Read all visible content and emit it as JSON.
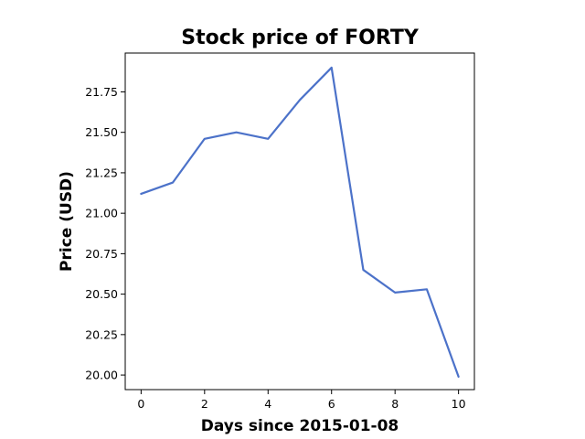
{
  "chart_data": {
    "type": "line",
    "title": "Stock price of FORTY",
    "xlabel": "Days since 2015-01-08",
    "ylabel": "Price (USD)",
    "x": [
      0,
      1,
      2,
      3,
      4,
      5,
      6,
      7,
      8,
      9,
      10
    ],
    "series": [
      {
        "color": "#4c72c9",
        "values": [
          21.12,
          21.19,
          21.46,
          21.5,
          21.46,
          21.7,
          21.9,
          20.65,
          20.51,
          20.53,
          19.99
        ]
      }
    ],
    "xlim": [
      -0.5,
      10.5
    ],
    "ylim": [
      19.91,
      21.99
    ],
    "xticks": [
      0,
      2,
      4,
      6,
      8,
      10
    ],
    "xtick_labels": [
      "0",
      "2",
      "4",
      "6",
      "8",
      "10"
    ],
    "yticks": [
      20.0,
      20.25,
      20.5,
      20.75,
      21.0,
      21.25,
      21.5,
      21.75
    ],
    "ytick_labels": [
      "20.00",
      "20.25",
      "20.50",
      "20.75",
      "21.00",
      "21.25",
      "21.50",
      "21.75"
    ],
    "grid": false,
    "legend": "none"
  }
}
